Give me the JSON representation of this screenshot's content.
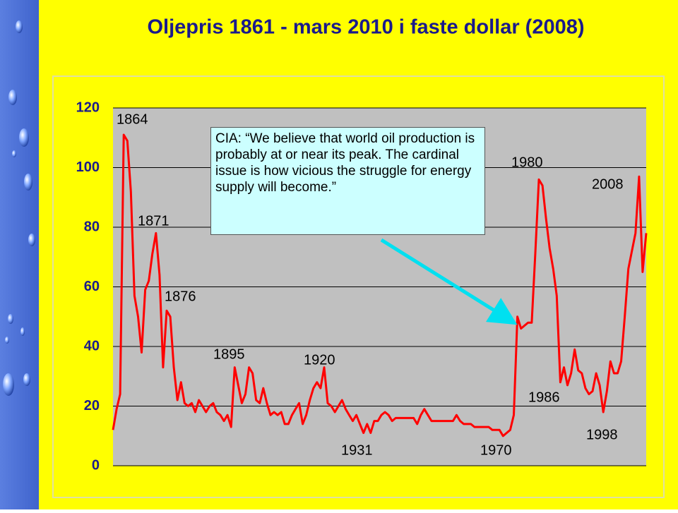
{
  "chart_data": {
    "type": "line",
    "title": "Oljepris 1861 - mars 2010 i faste dollar (2008)",
    "note": "CIA:  “We believe that world oil production is probably at or near its peak. The cardinal issue is how vicious the struggle for energy supply will become.”",
    "annotations": [
      "1864",
      "1871",
      "1876",
      "1895",
      "1920",
      "1931",
      "1970",
      "1980",
      "1986",
      "1998",
      "2008"
    ],
    "x": [
      1861,
      1862,
      1863,
      1864,
      1865,
      1866,
      1867,
      1868,
      1869,
      1870,
      1871,
      1872,
      1873,
      1874,
      1875,
      1876,
      1877,
      1878,
      1879,
      1880,
      1881,
      1882,
      1883,
      1884,
      1885,
      1886,
      1887,
      1888,
      1889,
      1890,
      1891,
      1892,
      1893,
      1894,
      1895,
      1896,
      1897,
      1898,
      1899,
      1900,
      1901,
      1902,
      1903,
      1904,
      1905,
      1906,
      1907,
      1908,
      1909,
      1910,
      1911,
      1912,
      1913,
      1914,
      1915,
      1916,
      1917,
      1918,
      1919,
      1920,
      1921,
      1922,
      1923,
      1924,
      1925,
      1926,
      1927,
      1928,
      1929,
      1930,
      1931,
      1932,
      1933,
      1934,
      1935,
      1936,
      1937,
      1938,
      1939,
      1940,
      1941,
      1942,
      1943,
      1944,
      1945,
      1946,
      1947,
      1948,
      1949,
      1950,
      1951,
      1952,
      1953,
      1954,
      1955,
      1956,
      1957,
      1958,
      1959,
      1960,
      1961,
      1962,
      1963,
      1964,
      1965,
      1966,
      1967,
      1968,
      1969,
      1970,
      1971,
      1972,
      1973,
      1974,
      1975,
      1976,
      1977,
      1978,
      1979,
      1980,
      1981,
      1982,
      1983,
      1984,
      1985,
      1986,
      1987,
      1988,
      1989,
      1990,
      1991,
      1992,
      1993,
      1994,
      1995,
      1996,
      1997,
      1998,
      1999,
      2000,
      2001,
      2002,
      2003,
      2004,
      2005,
      2006,
      2007,
      2008,
      2009,
      2010
    ],
    "series": [
      {
        "color": "#ff0000",
        "values": [
          12,
          19,
          24,
          111,
          109,
          92,
          57,
          50,
          38,
          59,
          62,
          71,
          78,
          64,
          33,
          52,
          50,
          33,
          22,
          28,
          21,
          20,
          21,
          18,
          22,
          20,
          18,
          20,
          21,
          18,
          17,
          15,
          17,
          13,
          33,
          27,
          21,
          24,
          33,
          31,
          22,
          21,
          26,
          21,
          17,
          18,
          17,
          18,
          14,
          14,
          17,
          19,
          21,
          14,
          17,
          22,
          26,
          28,
          26,
          33,
          21,
          20,
          18,
          20,
          22,
          19,
          17,
          15,
          17,
          14,
          11,
          14,
          11,
          15,
          15,
          17,
          18,
          17,
          15,
          16,
          16,
          16,
          16,
          16,
          16,
          14,
          17,
          19,
          17,
          15,
          15,
          15,
          15,
          15,
          15,
          15,
          17,
          15,
          14,
          14,
          14,
          13,
          13,
          13,
          13,
          13,
          12,
          12,
          12,
          10,
          11,
          12,
          17,
          50,
          46,
          47,
          48,
          48,
          71,
          96,
          94,
          83,
          73,
          66,
          57,
          28,
          33,
          27,
          31,
          39,
          32,
          31,
          26,
          24,
          25,
          31,
          27,
          18,
          25,
          35,
          31,
          31,
          35,
          50,
          66,
          72,
          78,
          97,
          65,
          78
        ]
      }
    ],
    "xlim": [
      1861,
      2010
    ],
    "ylim": [
      0,
      120
    ],
    "yticks": [
      0,
      20,
      40,
      60,
      80,
      100,
      120
    ],
    "grid": true
  }
}
